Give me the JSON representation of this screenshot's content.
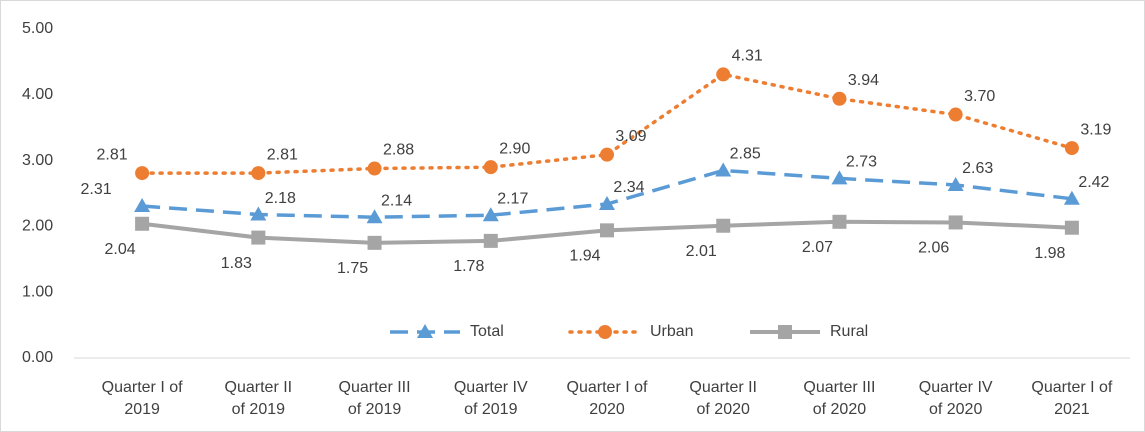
{
  "chart_data": {
    "type": "line",
    "categories": [
      "Quarter I of 2019",
      "Quarter II of 2019",
      "Quarter III of 2019",
      "Quarter IV of 2019",
      "Quarter I of 2020",
      "Quarter II of 2020",
      "Quarter III of 2020",
      "Quarter IV of 2020",
      "Quarter I of 2021"
    ],
    "series": [
      {
        "name": "Total",
        "color": "#5b9bd5",
        "values": [
          2.31,
          2.18,
          2.14,
          2.17,
          2.34,
          2.85,
          2.73,
          2.63,
          2.42
        ],
        "value_labels": [
          "2.31",
          "2.18",
          "2.14",
          "2.17",
          "2.34",
          "2.85",
          "2.73",
          "2.63",
          "2.42"
        ]
      },
      {
        "name": "Urban",
        "color": "#ed7d31",
        "values": [
          2.81,
          2.81,
          2.88,
          2.9,
          3.09,
          4.31,
          3.94,
          3.7,
          3.19
        ],
        "value_labels": [
          "2.81",
          "2.81",
          "2.88",
          "2.90",
          "3.09",
          "4.31",
          "3.94",
          "3.70",
          "3.19"
        ]
      },
      {
        "name": "Rural",
        "color": "#a5a5a5",
        "values": [
          2.04,
          1.83,
          1.75,
          1.78,
          1.94,
          2.01,
          2.07,
          2.06,
          1.98
        ],
        "value_labels": [
          "2.04",
          "1.83",
          "1.75",
          "1.78",
          "1.94",
          "2.01",
          "2.07",
          "2.06",
          "1.98"
        ]
      }
    ],
    "ylim": [
      0,
      5
    ],
    "yticks": [
      {
        "value": 0,
        "label": "0.00"
      },
      {
        "value": 1,
        "label": "1.00"
      },
      {
        "value": 2,
        "label": "2.00"
      },
      {
        "value": 3,
        "label": "3.00"
      },
      {
        "value": 4,
        "label": "4.00"
      },
      {
        "value": 5,
        "label": "5.00"
      }
    ],
    "legend": "bottom-inside"
  }
}
